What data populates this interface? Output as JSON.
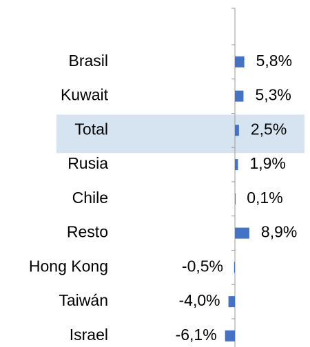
{
  "chart_data": {
    "type": "bar",
    "orientation": "horizontal",
    "categories": [
      "Brasil",
      "Kuwait",
      "Total",
      "Rusia",
      "Chile",
      "Resto",
      "Hong Kong",
      "Taiwán",
      "Israel"
    ],
    "values": [
      5.8,
      5.3,
      2.5,
      1.9,
      0.1,
      8.9,
      -0.5,
      -4.0,
      -6.1
    ],
    "value_labels": [
      "5,8%",
      "5,3%",
      "2,5%",
      "1,9%",
      "0,1%",
      "8,9%",
      "-0,5%",
      "-4,0%",
      "-6,1%"
    ],
    "color": "#4472c4",
    "highlight": "Total",
    "highlight_color": "#d6e3f0"
  }
}
